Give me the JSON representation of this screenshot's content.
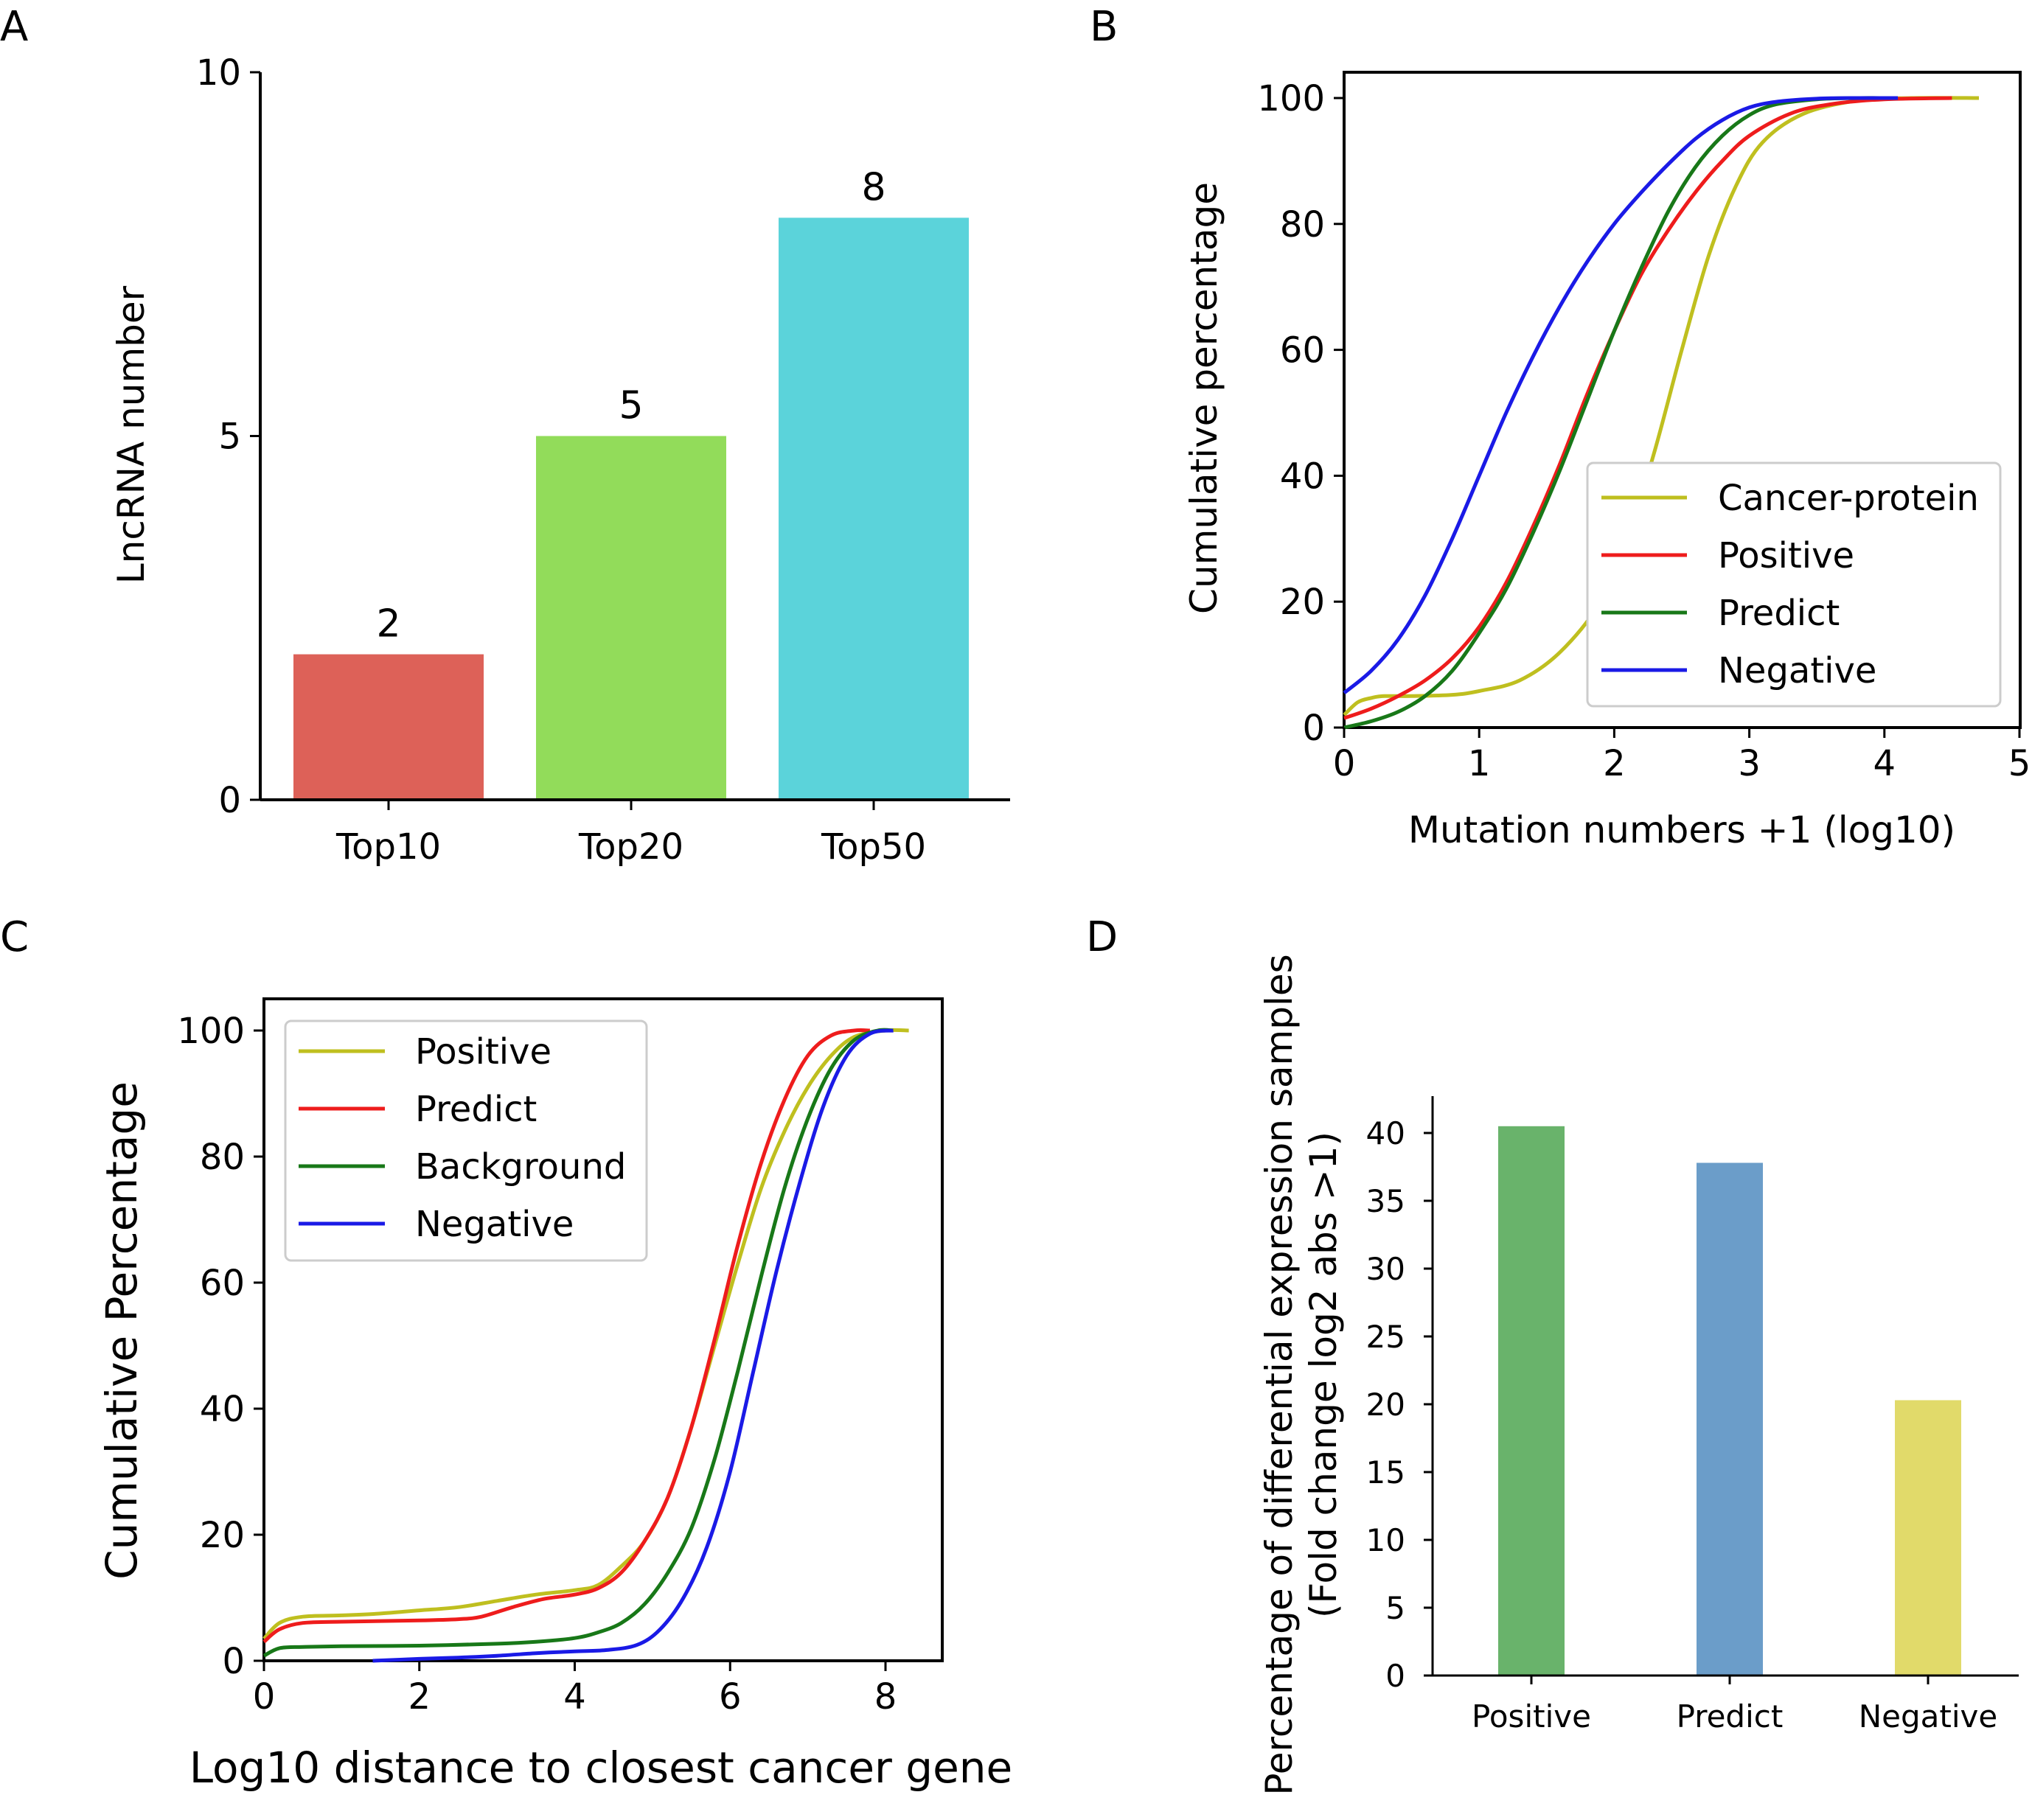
{
  "panels": {
    "A": {
      "letter": "A",
      "chart_data": {
        "type": "bar",
        "categories": [
          "Top10",
          "Top20",
          "Top50"
        ],
        "values": [
          2,
          5,
          8
        ],
        "data_labels": [
          "2",
          "5",
          "8"
        ],
        "colors": [
          "#dd6158",
          "#92dc5a",
          "#5bd3da"
        ],
        "title": "",
        "xlabel": "",
        "ylabel": "LncRNA number",
        "ylim": [
          0,
          10
        ],
        "yticks": [
          0,
          5,
          10
        ],
        "ytick_labels": [
          "0",
          "5",
          "10"
        ]
      }
    },
    "B": {
      "letter": "B",
      "chart_data": {
        "type": "line",
        "title": "",
        "xlabel": "Mutation numbers +1 (log10)",
        "ylabel": "Cumulative percentage",
        "xlim": [
          0,
          5
        ],
        "ylim": [
          0,
          100
        ],
        "xticks": [
          0,
          1,
          2,
          3,
          4,
          5
        ],
        "xtick_labels": [
          "0",
          "1",
          "2",
          "3",
          "4",
          "5"
        ],
        "yticks": [
          0,
          20,
          40,
          60,
          80,
          100
        ],
        "ytick_labels": [
          "0",
          "20",
          "40",
          "60",
          "80",
          "100"
        ],
        "legend_position": "lower-right",
        "series": [
          {
            "name": "Cancer-protein",
            "color": "#bfbf1f",
            "x": [
              0,
              0.1,
              0.2,
              0.3,
              0.5,
              0.8,
              1.0,
              1.3,
              1.6,
              1.9,
              2.1,
              2.3,
              2.5,
              2.7,
              2.9,
              3.1,
              3.4,
              3.8,
              4.2,
              4.7
            ],
            "y": [
              2,
              4,
              4.7,
              5,
              5,
              5.2,
              5.8,
              7.5,
              12,
              20,
              30,
              44,
              60,
              75,
              86,
              93,
              97.5,
              99.6,
              100,
              100
            ]
          },
          {
            "name": "Positive",
            "color": "#ee1c1c",
            "x": [
              0,
              0.2,
              0.4,
              0.6,
              0.8,
              1.0,
              1.2,
              1.4,
              1.6,
              1.8,
              2.0,
              2.2,
              2.4,
              2.6,
              2.8,
              3.0,
              3.3,
              3.6,
              4.0,
              4.5
            ],
            "y": [
              1.5,
              3,
              5,
              7.5,
              11,
              16,
              23,
              32,
              42,
              53,
              63,
              72,
              79,
              85,
              90,
              94,
              97.5,
              99,
              99.8,
              100
            ]
          },
          {
            "name": "Predict",
            "color": "#187818",
            "x": [
              0,
              0.2,
              0.4,
              0.6,
              0.8,
              1.0,
              1.2,
              1.4,
              1.6,
              1.8,
              2.0,
              2.2,
              2.4,
              2.6,
              2.8,
              3.0,
              3.2,
              3.5,
              3.8,
              4.0
            ],
            "y": [
              0,
              1,
              2.5,
              5,
              9,
              15,
              22,
              31,
              41,
              52,
              63,
              73,
              82,
              89,
              94,
              97.3,
              99,
              99.8,
              100,
              100
            ]
          },
          {
            "name": "Negative",
            "color": "#1a1ae6",
            "x": [
              0,
              0.2,
              0.4,
              0.6,
              0.8,
              1.0,
              1.2,
              1.4,
              1.6,
              1.8,
              2.0,
              2.2,
              2.4,
              2.6,
              2.8,
              3.0,
              3.2,
              3.5,
              3.8,
              4.1
            ],
            "y": [
              5.5,
              9,
              14,
              21,
              30,
              40,
              50,
              59,
              67,
              74,
              80,
              85,
              89.5,
              93.5,
              96.5,
              98.5,
              99.4,
              99.9,
              100,
              100
            ]
          }
        ]
      }
    },
    "C": {
      "letter": "C",
      "chart_data": {
        "type": "line",
        "title": "",
        "xlabel": "Log10 distance to closest cancer gene",
        "ylabel": "Cumulative Percentage",
        "xlim": [
          0,
          8.75
        ],
        "ylim": [
          0,
          100
        ],
        "xticks": [
          0,
          2,
          4,
          6,
          8
        ],
        "xtick_labels": [
          "0",
          "2",
          "4",
          "6",
          "8"
        ],
        "yticks": [
          0,
          20,
          40,
          60,
          80,
          100
        ],
        "ytick_labels": [
          "0",
          "20",
          "40",
          "60",
          "80",
          "100"
        ],
        "legend_position": "upper-left",
        "series": [
          {
            "name": "Positive",
            "color": "#bfbf1f",
            "x": [
              0,
              0.2,
              0.5,
              1.0,
              1.5,
              2.0,
              2.5,
              3.0,
              3.5,
              4.0,
              4.3,
              4.6,
              4.9,
              5.2,
              5.5,
              5.8,
              6.1,
              6.4,
              6.7,
              7.0,
              7.3,
              7.6,
              8.0,
              8.3
            ],
            "y": [
              3.5,
              6,
              7,
              7.2,
              7.5,
              8,
              8.5,
              9.5,
              10.5,
              11.2,
              12,
              15,
              19,
              26,
              37,
              50,
              63,
              75,
              84,
              91,
              96,
              99,
              100,
              100
            ]
          },
          {
            "name": "Predict",
            "color": "#ee1c1c",
            "x": [
              0,
              0.2,
              0.5,
              1.0,
              1.5,
              2.0,
              2.5,
              2.8,
              3.2,
              3.6,
              4.0,
              4.3,
              4.6,
              4.9,
              5.2,
              5.5,
              5.8,
              6.1,
              6.4,
              6.7,
              7.0,
              7.3,
              7.6,
              7.8
            ],
            "y": [
              3,
              5,
              6,
              6.2,
              6.3,
              6.4,
              6.6,
              7,
              8.5,
              9.8,
              10.5,
              11.5,
              14,
              19,
              26,
              37,
              51,
              66,
              79,
              89,
              96,
              99.2,
              100,
              100
            ]
          },
          {
            "name": "Background",
            "color": "#187818",
            "x": [
              0,
              0.2,
              0.5,
              1.0,
              2.0,
              3.0,
              3.5,
              4.0,
              4.3,
              4.6,
              4.9,
              5.2,
              5.5,
              5.8,
              6.1,
              6.4,
              6.7,
              7.0,
              7.3,
              7.6,
              7.9,
              8.1
            ],
            "y": [
              0.8,
              2,
              2.2,
              2.3,
              2.4,
              2.7,
              3,
              3.6,
              4.5,
              6,
              9,
              14,
              21,
              32,
              46,
              61,
              75,
              86,
              94,
              98.5,
              100,
              100
            ]
          },
          {
            "name": "Negative",
            "color": "#1a1ae6",
            "x": [
              1.4,
              2.0,
              2.5,
              3.0,
              3.5,
              4.0,
              4.4,
              4.8,
              5.1,
              5.4,
              5.7,
              6.0,
              6.3,
              6.6,
              6.9,
              7.2,
              7.5,
              7.8,
              8.1
            ],
            "y": [
              0,
              0.3,
              0.5,
              0.8,
              1.2,
              1.5,
              1.7,
              2.5,
              5,
              10,
              18,
              30,
              46,
              62,
              76,
              88,
              96,
              99.5,
              100
            ]
          }
        ]
      }
    },
    "D": {
      "letter": "D",
      "chart_data": {
        "type": "bar",
        "categories": [
          "Positive",
          "Predict",
          "Negative"
        ],
        "values": [
          40.5,
          37.8,
          20.3
        ],
        "colors": [
          "#69b36b",
          "#6b9dc9",
          "#e1da6a"
        ],
        "title": "",
        "xlabel": "",
        "ylabel": "Percentage of differential expression samples",
        "ylabel_line2": "(Fold change log2 abs >1)",
        "ylim": [
          0,
          42.5
        ],
        "yticks": [
          0,
          5,
          10,
          15,
          20,
          25,
          30,
          35,
          40
        ],
        "ytick_labels": [
          "0",
          "5",
          "10",
          "15",
          "20",
          "25",
          "30",
          "35",
          "40"
        ]
      }
    }
  }
}
